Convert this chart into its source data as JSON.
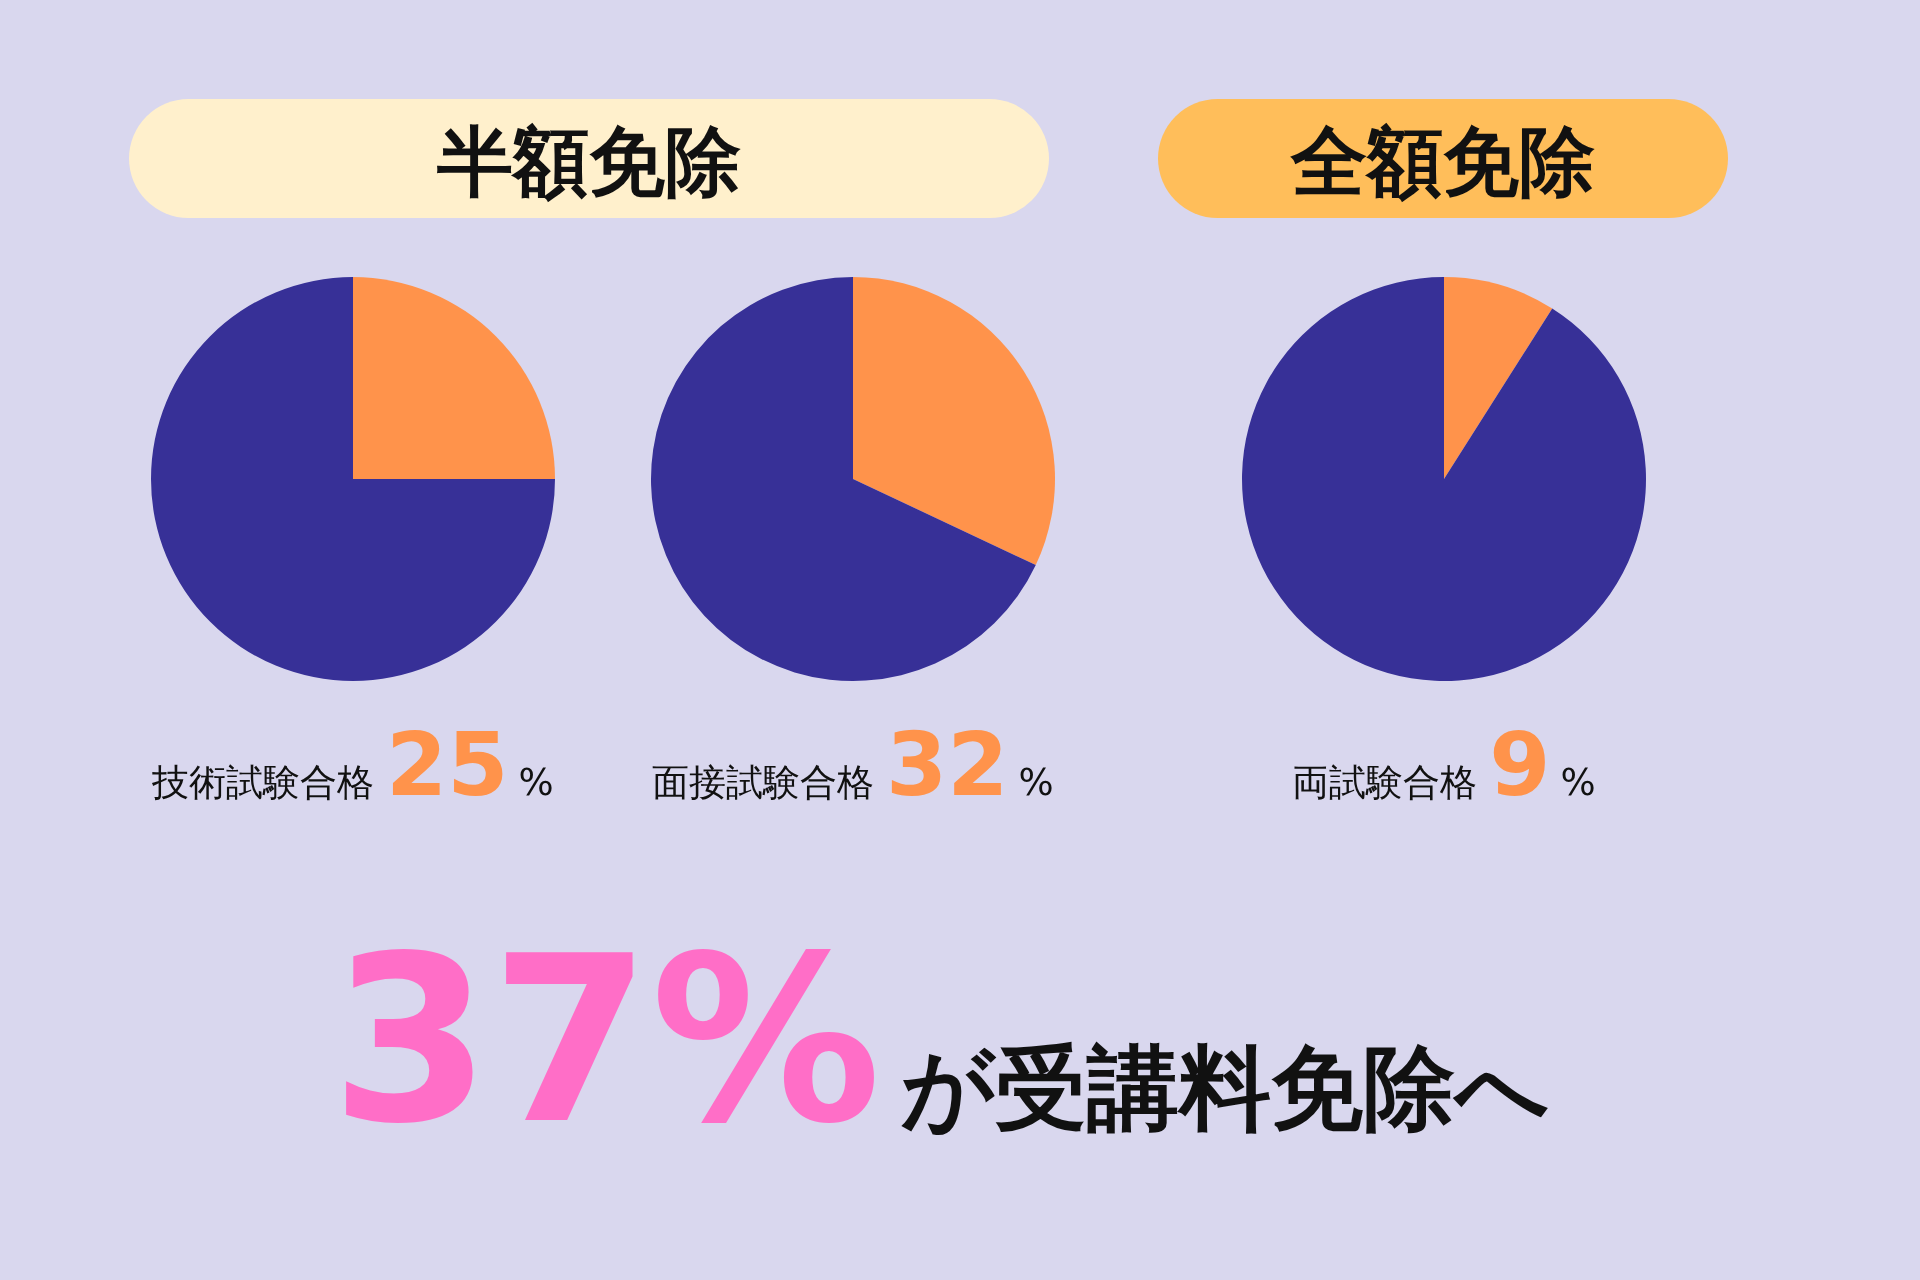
{
  "chart_data": [
    {
      "type": "pie",
      "title": "半額免除",
      "xlabel": "技術試験合格",
      "categories": [
        null,
        null
      ],
      "values": [
        25,
        75
      ],
      "colors": [
        "#ff934b",
        "#373097"
      ],
      "annotations": [
        "25%"
      ]
    },
    {
      "type": "pie",
      "xlabel": "面接試験合格",
      "categories": [
        null,
        null
      ],
      "values": [
        32,
        68
      ],
      "colors": [
        "#ff934b",
        "#373097"
      ],
      "annotations": [
        "32%"
      ]
    },
    {
      "type": "pie",
      "title": "全額免除",
      "xlabel": "両試験合格",
      "categories": [
        null,
        null
      ],
      "values": [
        9,
        91
      ],
      "colors": [
        "#ff934b",
        "#373097"
      ],
      "annotations": [
        "9%"
      ]
    },
    {
      "type": "other",
      "annotations": [
        "37%",
        "が受講料免除へ"
      ]
    }
  ]
}
